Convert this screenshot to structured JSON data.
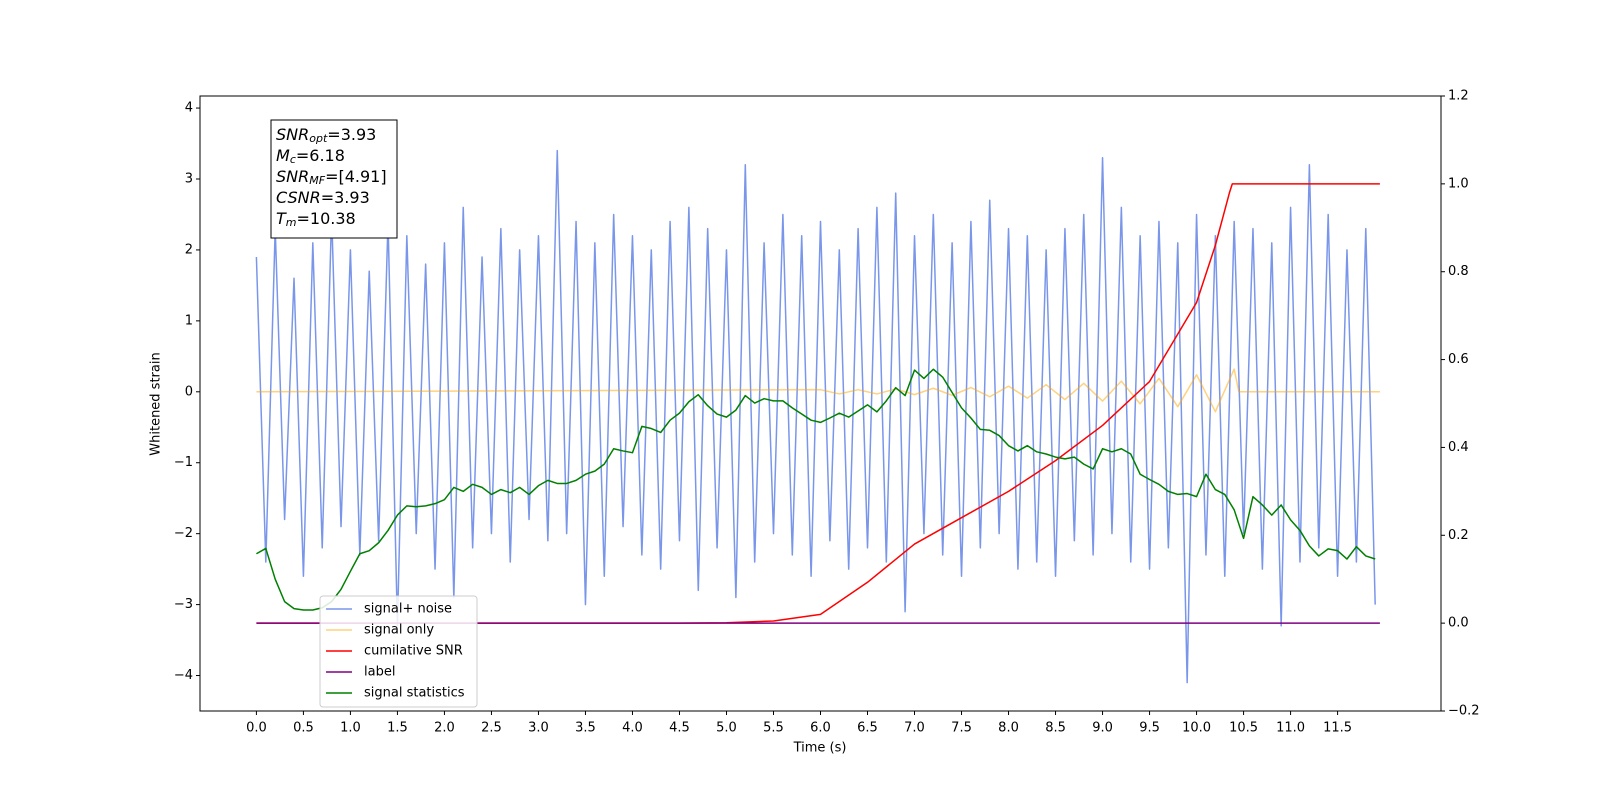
{
  "chart_data": {
    "type": "line",
    "xlabel": "Time (s)",
    "ylabel": "Whitened strain",
    "xlim": [
      -0.6,
      12.6
    ],
    "ylim": [
      -4.5,
      4.17
    ],
    "y2lim": [
      -0.2,
      1.2
    ],
    "xticks": [
      {
        "value": 0,
        "label": "0.0"
      },
      0.5,
      {
        "value": 1,
        "label": "1.0"
      },
      1.5,
      {
        "value": 2,
        "label": "2.0"
      },
      2.5,
      {
        "value": 3,
        "label": "3.0"
      },
      3.5,
      {
        "value": 4,
        "label": "4.0"
      },
      4.5,
      {
        "value": 5,
        "label": "5.0"
      },
      5.5,
      {
        "value": 6,
        "label": "6.0"
      },
      6.5,
      {
        "value": 7,
        "label": "7.0"
      },
      7.5,
      {
        "value": 8,
        "label": "8.0"
      },
      8.5,
      {
        "value": 9,
        "label": "9.0"
      },
      9.5,
      {
        "value": 10,
        "label": "10.0"
      },
      10.5,
      {
        "value": 11,
        "label": "11.0"
      },
      11.5
    ],
    "yticks": [
      {
        "value": -4,
        "label": "−4"
      },
      {
        "value": -3,
        "label": "−3"
      },
      {
        "value": -2,
        "label": "−2"
      },
      {
        "value": -1,
        "label": "−1"
      },
      0,
      1,
      2,
      3,
      4
    ],
    "y2ticks": [
      {
        "value": -0.2,
        "label": "−0.2"
      },
      {
        "value": 0,
        "label": "0.0"
      },
      0.2,
      0.4,
      0.6,
      0.8,
      {
        "value": 1,
        "label": "1.0"
      },
      1.2
    ],
    "legend": "lower left",
    "annotation": [
      {
        "symbol": "SNR",
        "subscript": "opt",
        "text": "=3.93"
      },
      {
        "symbol": "M",
        "subscript": "c",
        "text": "=6.18"
      },
      {
        "symbol": "SNR",
        "subscript": "MF",
        "text": "=[4.91]"
      },
      {
        "symbol": "CSNR",
        "text": "=3.93"
      },
      {
        "symbol": "T",
        "subscript": "m",
        "text": "=10.38"
      }
    ],
    "x": [
      0,
      0.1,
      0.2,
      0.3,
      0.4,
      0.5,
      0.6,
      0.7,
      0.8,
      0.9,
      1,
      1.1,
      1.2,
      1.3,
      1.4,
      1.5,
      1.6,
      1.7,
      1.8,
      1.9,
      2,
      2.1,
      2.2,
      2.3,
      2.4,
      2.5,
      2.6,
      2.7,
      2.8,
      2.9,
      3,
      3.1,
      3.2,
      3.3,
      3.4,
      3.5,
      3.6,
      3.7,
      3.8,
      3.9,
      4,
      4.1,
      4.2,
      4.3,
      4.4,
      4.5,
      4.6,
      4.7,
      4.8,
      4.9,
      5,
      5.1,
      5.2,
      5.3,
      5.4,
      5.5,
      5.6,
      5.7,
      5.8,
      5.9,
      6,
      6.1,
      6.2,
      6.3,
      6.4,
      6.5,
      6.6,
      6.7,
      6.8,
      6.9,
      7,
      7.1,
      7.2,
      7.3,
      7.4,
      7.5,
      7.6,
      7.7,
      7.8,
      7.9,
      8,
      8.1,
      8.2,
      8.3,
      8.4,
      8.5,
      8.6,
      8.7,
      8.8,
      8.9,
      9,
      9.1,
      9.2,
      9.3,
      9.4,
      9.5,
      9.6,
      9.7,
      9.8,
      9.9,
      10,
      10.1,
      10.2,
      10.3,
      10.4,
      10.5,
      10.6,
      10.7,
      10.8,
      10.9,
      11,
      11.1,
      11.2,
      11.3,
      11.4,
      11.5,
      11.6,
      11.7,
      11.8,
      11.9
    ],
    "series": [
      {
        "name": "signal+ noise",
        "color": "#4169e1",
        "alpha": 0.7,
        "values": [
          1.9,
          -2.4,
          2.3,
          -1.8,
          1.6,
          -2.6,
          2.1,
          -2.2,
          2.5,
          -1.9,
          2.0,
          -2.3,
          1.7,
          -2.1,
          2.4,
          -3.3,
          2.2,
          -2.0,
          1.8,
          -2.5,
          2.1,
          -2.9,
          2.6,
          -2.2,
          1.9,
          -2.0,
          2.3,
          -2.4,
          2.0,
          -1.8,
          2.2,
          -2.1,
          3.4,
          -2.0,
          2.4,
          -3.0,
          2.1,
          -2.6,
          2.5,
          -1.9,
          2.2,
          -2.3,
          2.0,
          -2.5,
          2.4,
          -2.1,
          2.6,
          -2.8,
          2.3,
          -2.2,
          2.0,
          -2.9,
          3.2,
          -2.4,
          2.1,
          -2.0,
          2.5,
          -2.3,
          2.2,
          -2.6,
          2.4,
          -2.1,
          2.0,
          -2.5,
          2.3,
          -2.2,
          2.6,
          -2.4,
          2.8,
          -3.1,
          2.2,
          -2.0,
          2.5,
          -2.3,
          2.1,
          -2.6,
          2.4,
          -2.2,
          2.7,
          -2.0,
          2.3,
          -2.5,
          2.2,
          -2.4,
          2.0,
          -2.6,
          2.3,
          -2.1,
          2.5,
          -2.3,
          3.3,
          -2.0,
          2.6,
          -2.4,
          2.2,
          -2.5,
          2.4,
          -2.2,
          2.1,
          -4.1,
          2.5,
          -2.3,
          2.2,
          -2.6,
          2.4,
          -2.0,
          2.3,
          -2.5,
          2.1,
          -3.3,
          2.6,
          -2.4,
          3.2,
          -2.2,
          2.5,
          -2.6,
          2.0,
          -2.4,
          2.3,
          -3.0
        ]
      },
      {
        "name": "signal only",
        "color": "#ffa500",
        "alpha": 0.5,
        "x": [
          0,
          6.0,
          6.2,
          6.4,
          6.6,
          6.8,
          7.0,
          7.2,
          7.4,
          7.6,
          7.8,
          8.0,
          8.2,
          8.4,
          8.6,
          8.8,
          9.0,
          9.2,
          9.4,
          9.6,
          9.8,
          10.0,
          10.2,
          10.4,
          10.45,
          11.95
        ],
        "values": [
          0,
          0.03,
          -0.03,
          0.03,
          -0.03,
          0.04,
          -0.04,
          0.05,
          -0.05,
          0.06,
          -0.07,
          0.08,
          -0.09,
          0.1,
          -0.11,
          0.12,
          -0.13,
          0.15,
          -0.17,
          0.19,
          -0.21,
          0.24,
          -0.28,
          0.32,
          0,
          0
        ]
      },
      {
        "name": "cumilative SNR",
        "color": "#ff0000",
        "alpha": 1,
        "axis": "y2",
        "x": [
          0,
          4.5,
          5.0,
          5.5,
          6.0,
          6.5,
          7.0,
          7.5,
          8.0,
          8.5,
          9.0,
          9.5,
          10.0,
          10.2,
          10.35,
          10.38,
          11.95
        ],
        "values": [
          0,
          0,
          0.001,
          0.005,
          0.02,
          0.093,
          0.18,
          0.24,
          0.3,
          0.37,
          0.45,
          0.55,
          0.73,
          0.86,
          0.98,
          1.0,
          1.0
        ]
      },
      {
        "name": "label",
        "color": "#800080",
        "alpha": 1,
        "axis": "y2",
        "x": [
          0,
          11.95
        ],
        "values": [
          0,
          0
        ]
      },
      {
        "name": "signal statistics",
        "color": "#008000",
        "alpha": 1,
        "axis": "y2",
        "values": [
          0.158,
          0.17,
          0.1,
          0.049,
          0.033,
          0.03,
          0.03,
          0.035,
          0.049,
          0.077,
          0.118,
          0.158,
          0.165,
          0.183,
          0.211,
          0.246,
          0.267,
          0.265,
          0.267,
          0.272,
          0.281,
          0.309,
          0.3,
          0.316,
          0.309,
          0.293,
          0.304,
          0.297,
          0.309,
          0.293,
          0.313,
          0.325,
          0.318,
          0.318,
          0.325,
          0.339,
          0.346,
          0.362,
          0.397,
          0.392,
          0.388,
          0.448,
          0.443,
          0.434,
          0.462,
          0.478,
          0.504,
          0.52,
          0.495,
          0.476,
          0.469,
          0.485,
          0.518,
          0.501,
          0.511,
          0.506,
          0.506,
          0.49,
          0.476,
          0.462,
          0.457,
          0.467,
          0.478,
          0.469,
          0.483,
          0.497,
          0.481,
          0.506,
          0.536,
          0.518,
          0.576,
          0.557,
          0.578,
          0.56,
          0.525,
          0.49,
          0.467,
          0.441,
          0.439,
          0.427,
          0.404,
          0.392,
          0.404,
          0.39,
          0.385,
          0.378,
          0.374,
          0.378,
          0.362,
          0.351,
          0.397,
          0.39,
          0.397,
          0.385,
          0.339,
          0.327,
          0.316,
          0.3,
          0.293,
          0.295,
          0.288,
          0.339,
          0.304,
          0.293,
          0.258,
          0.193,
          0.288,
          0.269,
          0.246,
          0.269,
          0.235,
          0.211,
          0.176,
          0.153,
          0.169,
          0.165,
          0.146,
          0.174,
          0.153,
          0.146
        ]
      }
    ]
  }
}
